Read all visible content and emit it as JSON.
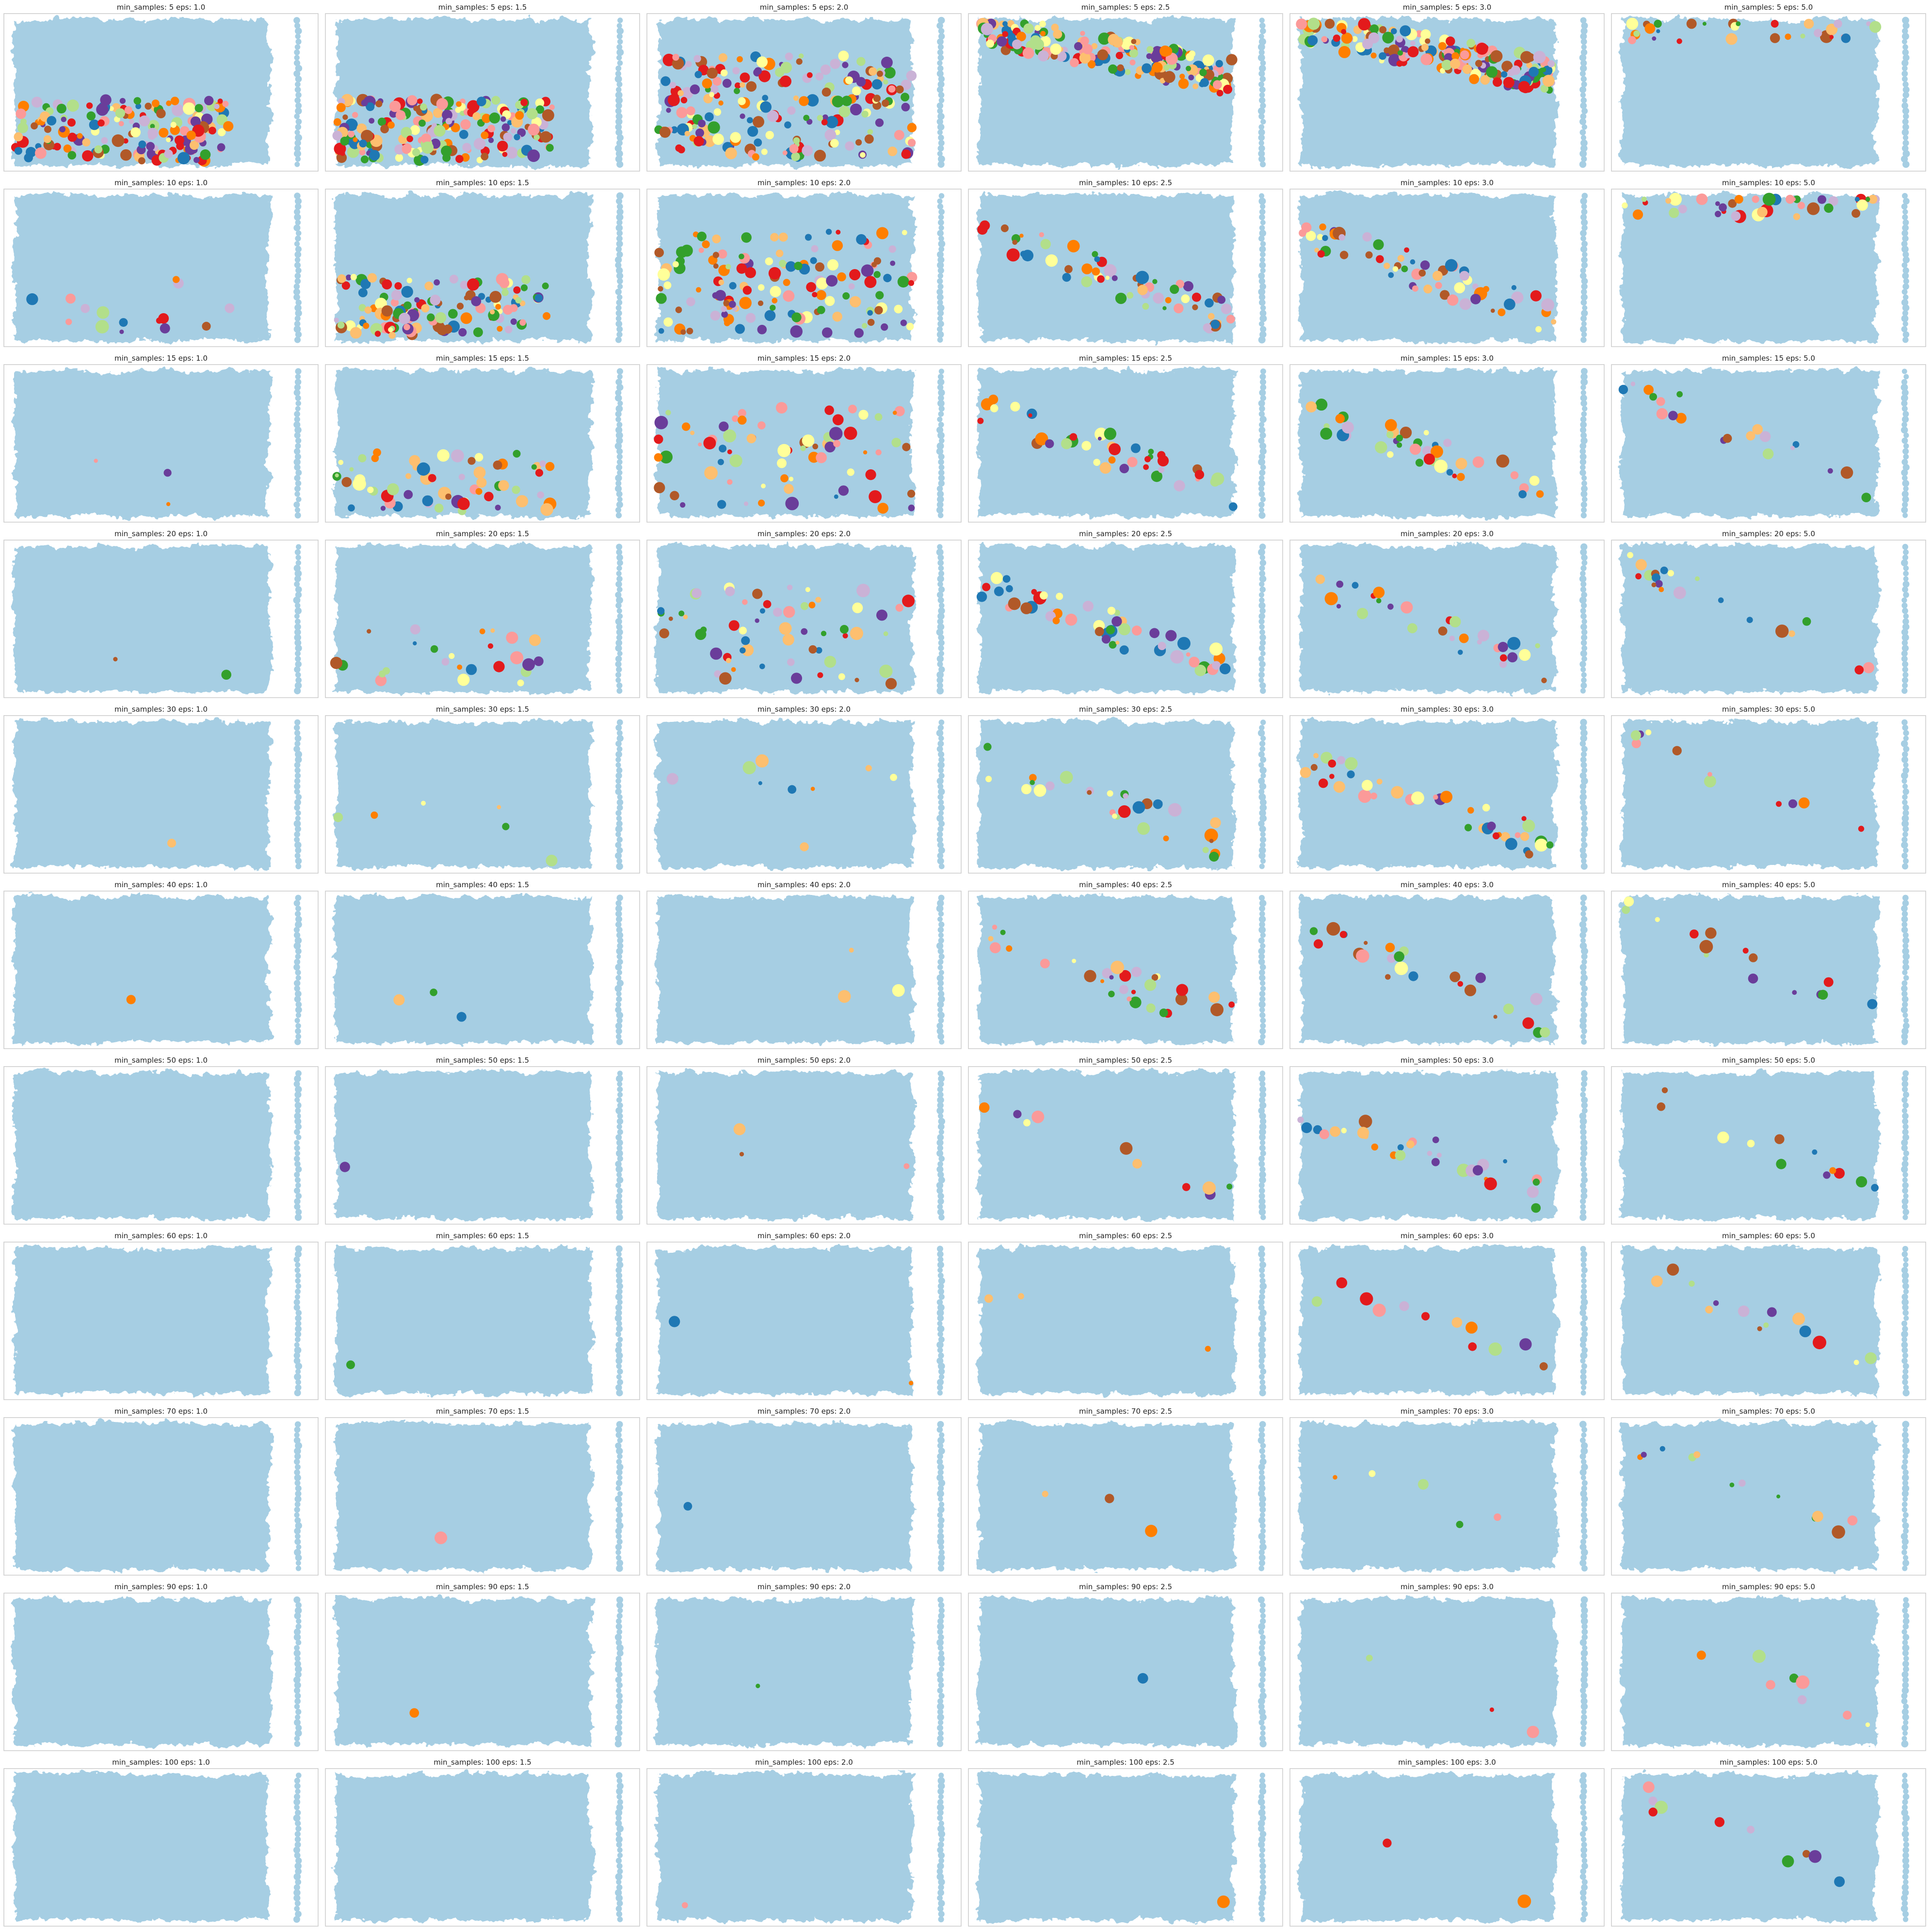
{
  "chart_data": {
    "type": "scatter",
    "layout": "grid",
    "rows": [
      5,
      10,
      15,
      20,
      30,
      40,
      50,
      60,
      70,
      90,
      100
    ],
    "cols": [
      1.0,
      1.5,
      2.0,
      2.5,
      3.0,
      5.0
    ],
    "row_param": "min_samples",
    "col_param": "eps",
    "noise_color": "#a6cee3",
    "palette": [
      "#1f78b4",
      "#b2df8a",
      "#33a02c",
      "#fb9a99",
      "#e31a1c",
      "#fdbf6f",
      "#ff7f00",
      "#cab2d6",
      "#6a3d9a",
      "#ffff99",
      "#b15928"
    ],
    "subplots": [
      {
        "title": "min_samples: 5 eps: 1.0",
        "clusters_estimate": 160
      },
      {
        "title": "min_samples: 5 eps: 1.5",
        "clusters_estimate": 200
      },
      {
        "title": "min_samples: 5 eps: 2.0",
        "clusters_estimate": 200
      },
      {
        "title": "min_samples: 5 eps: 2.5",
        "clusters_estimate": 180
      },
      {
        "title": "min_samples: 5 eps: 3.0",
        "clusters_estimate": 180
      },
      {
        "title": "min_samples: 5 eps: 5.0",
        "clusters_estimate": 30
      },
      {
        "title": "min_samples: 10 eps: 1.0",
        "clusters_estimate": 15
      },
      {
        "title": "min_samples: 10 eps: 1.5",
        "clusters_estimate": 130
      },
      {
        "title": "min_samples: 10 eps: 2.0",
        "clusters_estimate": 140
      },
      {
        "title": "min_samples: 10 eps: 2.5",
        "clusters_estimate": 60
      },
      {
        "title": "min_samples: 10 eps: 3.0",
        "clusters_estimate": 60
      },
      {
        "title": "min_samples: 10 eps: 5.0",
        "clusters_estimate": 40
      },
      {
        "title": "min_samples: 15 eps: 1.0",
        "clusters_estimate": 3
      },
      {
        "title": "min_samples: 15 eps: 1.5",
        "clusters_estimate": 60
      },
      {
        "title": "min_samples: 15 eps: 2.0",
        "clusters_estimate": 70
      },
      {
        "title": "min_samples: 15 eps: 2.5",
        "clusters_estimate": 40
      },
      {
        "title": "min_samples: 15 eps: 3.0",
        "clusters_estimate": 40
      },
      {
        "title": "min_samples: 15 eps: 5.0",
        "clusters_estimate": 20
      },
      {
        "title": "min_samples: 20 eps: 1.0",
        "clusters_estimate": 2
      },
      {
        "title": "min_samples: 20 eps: 1.5",
        "clusters_estimate": 25
      },
      {
        "title": "min_samples: 20 eps: 2.0",
        "clusters_estimate": 60
      },
      {
        "title": "min_samples: 20 eps: 2.5",
        "clusters_estimate": 50
      },
      {
        "title": "min_samples: 20 eps: 3.0",
        "clusters_estimate": 30
      },
      {
        "title": "min_samples: 20 eps: 5.0",
        "clusters_estimate": 20
      },
      {
        "title": "min_samples: 30 eps: 1.0",
        "clusters_estimate": 1
      },
      {
        "title": "min_samples: 30 eps: 1.5",
        "clusters_estimate": 6
      },
      {
        "title": "min_samples: 30 eps: 2.0",
        "clusters_estimate": 10
      },
      {
        "title": "min_samples: 30 eps: 2.5",
        "clusters_estimate": 30
      },
      {
        "title": "min_samples: 30 eps: 3.0",
        "clusters_estimate": 40
      },
      {
        "title": "min_samples: 30 eps: 5.0",
        "clusters_estimate": 12
      },
      {
        "title": "min_samples: 40 eps: 1.0",
        "clusters_estimate": 1
      },
      {
        "title": "min_samples: 40 eps: 1.5",
        "clusters_estimate": 3
      },
      {
        "title": "min_samples: 40 eps: 2.0",
        "clusters_estimate": 3
      },
      {
        "title": "min_samples: 40 eps: 2.5",
        "clusters_estimate": 30
      },
      {
        "title": "min_samples: 40 eps: 3.0",
        "clusters_estimate": 25
      },
      {
        "title": "min_samples: 40 eps: 5.0",
        "clusters_estimate": 15
      },
      {
        "title": "min_samples: 50 eps: 1.0",
        "clusters_estimate": 0
      },
      {
        "title": "min_samples: 50 eps: 1.5",
        "clusters_estimate": 1
      },
      {
        "title": "min_samples: 50 eps: 2.0",
        "clusters_estimate": 3
      },
      {
        "title": "min_samples: 50 eps: 2.5",
        "clusters_estimate": 10
      },
      {
        "title": "min_samples: 50 eps: 3.0",
        "clusters_estimate": 30
      },
      {
        "title": "min_samples: 50 eps: 5.0",
        "clusters_estimate": 12
      },
      {
        "title": "min_samples: 60 eps: 1.0",
        "clusters_estimate": 0
      },
      {
        "title": "min_samples: 60 eps: 1.5",
        "clusters_estimate": 1
      },
      {
        "title": "min_samples: 60 eps: 2.0",
        "clusters_estimate": 2
      },
      {
        "title": "min_samples: 60 eps: 2.5",
        "clusters_estimate": 3
      },
      {
        "title": "min_samples: 60 eps: 3.0",
        "clusters_estimate": 12
      },
      {
        "title": "min_samples: 60 eps: 5.0",
        "clusters_estimate": 14
      },
      {
        "title": "min_samples: 70 eps: 1.0",
        "clusters_estimate": 0
      },
      {
        "title": "min_samples: 70 eps: 1.5",
        "clusters_estimate": 1
      },
      {
        "title": "min_samples: 70 eps: 2.0",
        "clusters_estimate": 1
      },
      {
        "title": "min_samples: 70 eps: 2.5",
        "clusters_estimate": 3
      },
      {
        "title": "min_samples: 70 eps: 3.0",
        "clusters_estimate": 5
      },
      {
        "title": "min_samples: 70 eps: 5.0",
        "clusters_estimate": 12
      },
      {
        "title": "min_samples: 90 eps: 1.0",
        "clusters_estimate": 0
      },
      {
        "title": "min_samples: 90 eps: 1.5",
        "clusters_estimate": 1
      },
      {
        "title": "min_samples: 90 eps: 2.0",
        "clusters_estimate": 1
      },
      {
        "title": "min_samples: 90 eps: 2.5",
        "clusters_estimate": 1
      },
      {
        "title": "min_samples: 90 eps: 3.0",
        "clusters_estimate": 3
      },
      {
        "title": "min_samples: 90 eps: 5.0",
        "clusters_estimate": 8
      },
      {
        "title": "min_samples: 100 eps: 1.0",
        "clusters_estimate": 0
      },
      {
        "title": "min_samples: 100 eps: 1.5",
        "clusters_estimate": 0
      },
      {
        "title": "min_samples: 100 eps: 2.0",
        "clusters_estimate": 1
      },
      {
        "title": "min_samples: 100 eps: 2.5",
        "clusters_estimate": 1
      },
      {
        "title": "min_samples: 100 eps: 3.0",
        "clusters_estimate": 2
      },
      {
        "title": "min_samples: 100 eps: 5.0",
        "clusters_estimate": 10
      }
    ]
  }
}
